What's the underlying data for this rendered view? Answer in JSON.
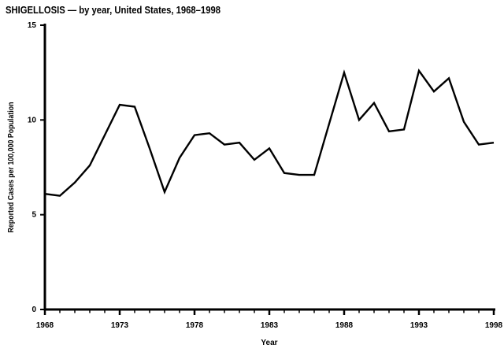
{
  "chart_data": {
    "type": "line",
    "title": "SHIGELLOSIS — by year, United States, 1968–1998",
    "xlabel": "Year",
    "ylabel": "Reported Cases per 100,000 Population",
    "x": [
      1968,
      1969,
      1970,
      1971,
      1972,
      1973,
      1974,
      1975,
      1976,
      1977,
      1978,
      1979,
      1980,
      1981,
      1982,
      1983,
      1984,
      1985,
      1986,
      1987,
      1988,
      1989,
      1990,
      1991,
      1992,
      1993,
      1994,
      1995,
      1996,
      1997,
      1998
    ],
    "values": [
      6.1,
      6.0,
      6.7,
      7.6,
      9.2,
      10.8,
      10.7,
      8.5,
      6.2,
      8.0,
      9.2,
      9.3,
      8.7,
      8.8,
      7.9,
      8.5,
      7.2,
      7.1,
      7.1,
      9.8,
      12.5,
      10.0,
      10.9,
      9.4,
      9.5,
      12.6,
      11.5,
      12.2,
      9.9,
      8.7,
      8.8
    ],
    "xlim": [
      1968,
      1998
    ],
    "ylim": [
      0,
      15
    ],
    "yticks": [
      0,
      5,
      10,
      15
    ],
    "xticks_major": [
      1968,
      1973,
      1978,
      1983,
      1988,
      1993,
      1998
    ],
    "xticks_minor_step": 1,
    "grid": false,
    "legend": "none",
    "line_color": "#000000",
    "axis_color": "#000000",
    "background_color": "#ffffff"
  }
}
